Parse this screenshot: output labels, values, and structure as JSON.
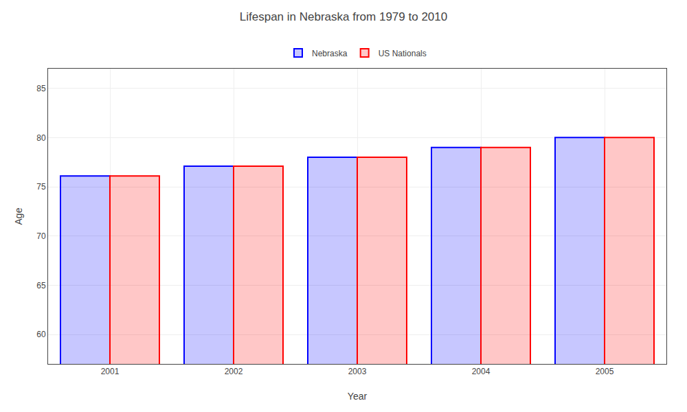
{
  "chart_data": {
    "type": "bar",
    "title": "Lifespan in Nebraska from 1979 to 2010",
    "xlabel": "Year",
    "ylabel": "Age",
    "categories": [
      "2001",
      "2002",
      "2003",
      "2004",
      "2005"
    ],
    "series": [
      {
        "name": "Nebraska",
        "color": "#0000ff",
        "values": [
          76.1,
          77.1,
          78.0,
          79.0,
          80.0
        ]
      },
      {
        "name": "US Nationals",
        "color": "#ff0000",
        "values": [
          76.1,
          77.1,
          78.0,
          79.0,
          80.0
        ]
      }
    ],
    "ylim": [
      57,
      87
    ],
    "yticks": [
      60,
      65,
      70,
      75,
      80,
      85
    ],
    "grid": true,
    "legend": "upper center"
  }
}
